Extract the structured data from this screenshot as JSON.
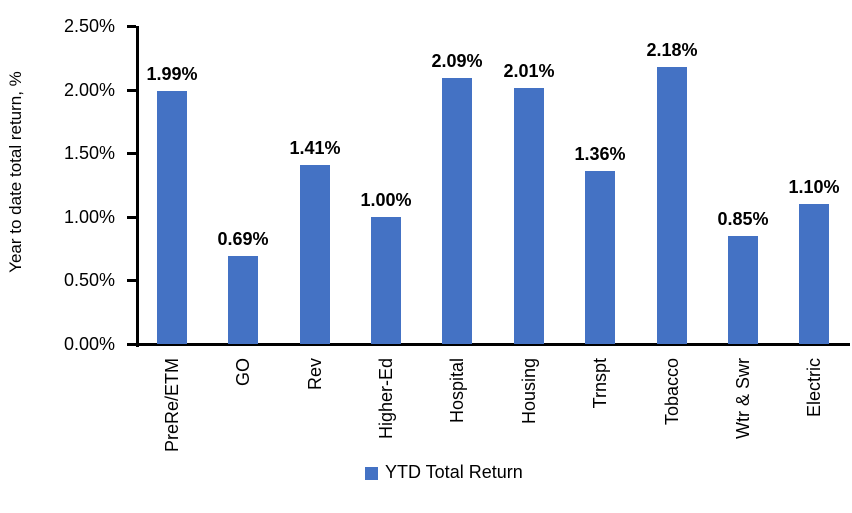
{
  "chart_data": {
    "type": "bar",
    "categories": [
      "PreRe/ETM",
      "GO",
      "Rev",
      "Higher-Ed",
      "Hospital",
      "Housing",
      "Trnspt",
      "Tobacco",
      "Wtr & Swr",
      "Electric"
    ],
    "values": [
      1.99,
      0.69,
      1.41,
      1.0,
      2.09,
      2.01,
      1.36,
      2.18,
      0.85,
      1.1
    ],
    "data_labels": [
      "1.99%",
      "0.69%",
      "1.41%",
      "1.00%",
      "2.09%",
      "2.01%",
      "1.36%",
      "2.18%",
      "0.85%",
      "1.10%"
    ],
    "title": "",
    "xlabel": "",
    "ylabel": "Year to date total return, %",
    "ylim": [
      0,
      2.5
    ],
    "y_tick_labels": [
      "0.00%",
      "0.50%",
      "1.00%",
      "1.50%",
      "2.00%",
      "2.50%"
    ],
    "y_tick_values": [
      0,
      0.5,
      1.0,
      1.5,
      2.0,
      2.5
    ],
    "legend": [
      "YTD Total Return"
    ],
    "legend_position": "bottom",
    "grid": false,
    "bar_color": "#4472C4",
    "axis_color": "#000000",
    "label_color": "#000000"
  }
}
